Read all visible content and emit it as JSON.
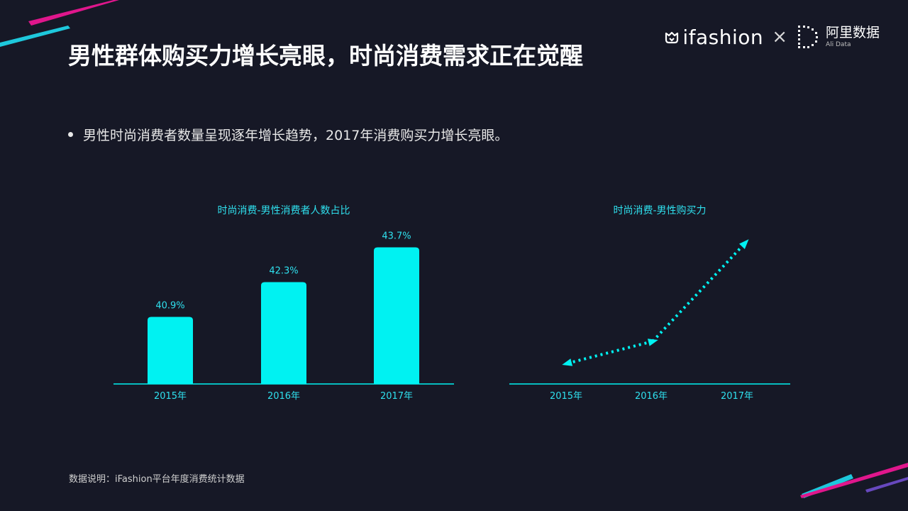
{
  "title": "男性群体购买力增长亮眼，时尚消费需求正在觉醒",
  "logos": {
    "brand": "ifashion",
    "separator": "×",
    "partner_cn": "阿里数据",
    "partner_en": "Ali Data"
  },
  "bullet": "男性时尚消费者数量呈现逐年增长趋势，2017年消费购买力增长亮眼。",
  "chart_data": [
    {
      "type": "bar",
      "title": "时尚消费-男性消费者人数占比",
      "categories": [
        "2015年",
        "2016年",
        "2017年"
      ],
      "values": [
        40.9,
        42.3,
        43.7
      ],
      "data_labels": [
        "40.9%",
        "42.3%",
        "43.7%"
      ],
      "color": "#00f2f2"
    },
    {
      "type": "line",
      "title": "时尚消费-男性购买力",
      "categories": [
        "2015年",
        "2016年",
        "2017年"
      ],
      "values": [
        1.0,
        1.45,
        3.45
      ],
      "style": "dotted-with-arrows",
      "color": "#00f2f2"
    }
  ],
  "colors": {
    "background": "#161826",
    "accent_cyan": "#00f2f2",
    "accent_magenta": "#e0168c"
  },
  "footnote": "数据说明：iFashion平台年度消费统计数据"
}
